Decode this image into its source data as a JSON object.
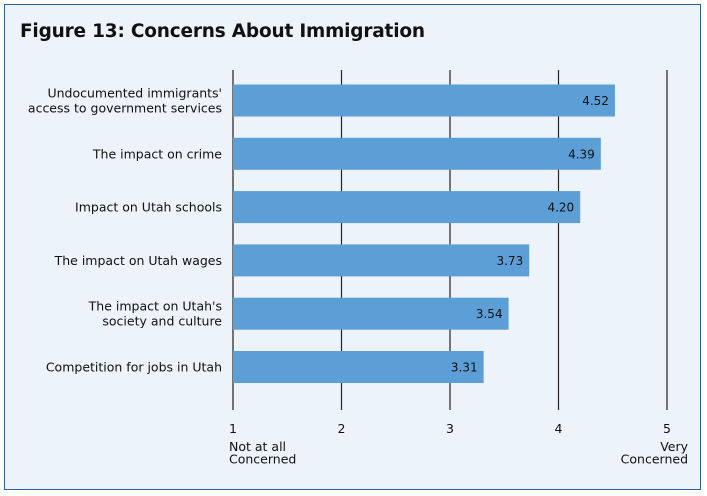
{
  "chart_data": {
    "type": "bar",
    "orientation": "horizontal",
    "title": "Figure 13: Concerns About Immigration",
    "categories": [
      [
        "Undocumented immigrants'",
        "access to government services"
      ],
      [
        "The impact on crime"
      ],
      [
        "Impact on Utah schools"
      ],
      [
        "The impact on Utah wages"
      ],
      [
        "The impact on Utah's",
        "society and culture"
      ],
      [
        "Competition for jobs in Utah"
      ]
    ],
    "values": [
      4.52,
      4.39,
      4.2,
      3.73,
      3.54,
      3.31
    ],
    "value_labels": [
      "4.52",
      "4.39",
      "4.20",
      "3.73",
      "3.54",
      "3.31"
    ],
    "xlim": [
      1,
      5
    ],
    "xticks": [
      "1",
      "2",
      "3",
      "4",
      "5"
    ],
    "axis_end_labels": {
      "left": [
        "Not at all",
        "Concerned"
      ],
      "right": [
        "Very",
        "Concerned"
      ]
    },
    "grid": true,
    "bar_color": "#5b9fd6",
    "frame_color": "#2f5f9a",
    "background_color": "#ecf3fb"
  }
}
